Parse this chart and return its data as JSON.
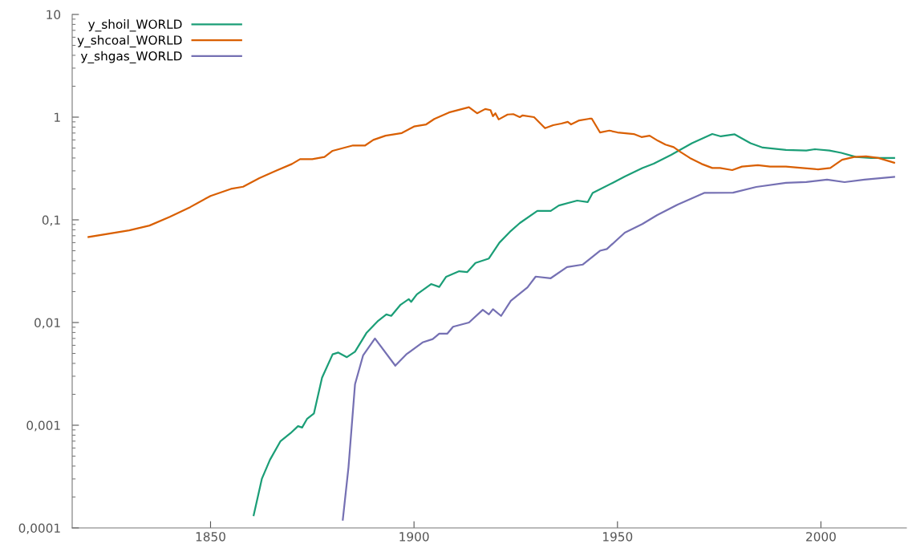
{
  "chart_data": {
    "type": "line",
    "log": "y",
    "grid": false,
    "legend": "top left",
    "marker": "none",
    "line_style": "solid",
    "xlim": [
      1816,
      2021
    ],
    "xticks": [
      1850,
      1900,
      1950,
      2000
    ],
    "ylim": [
      0.0001,
      10
    ],
    "yticks": [
      {
        "value": 0.0001,
        "label": "0,0001"
      },
      {
        "value": 0.001,
        "label": "0,001"
      },
      {
        "value": 0.01,
        "label": "0,01"
      },
      {
        "value": 0.1,
        "label": "0,1"
      },
      {
        "value": 1,
        "label": "1"
      },
      {
        "value": 10,
        "label": "10"
      }
    ],
    "series": [
      {
        "name": "y_shoil_WORLD",
        "color": "#1b9e77",
        "x": [
          1860.6,
          1862.6,
          1864.6,
          1867.2,
          1869.7,
          1871.5,
          1872.5,
          1873.7,
          1875.4,
          1877.4,
          1880,
          1881.4,
          1883.5,
          1885.5,
          1888.3,
          1891.2,
          1893.2,
          1894.4,
          1896.7,
          1898.7,
          1899.3,
          1900.7,
          1904.2,
          1906.2,
          1907.9,
          1911.1,
          1913.1,
          1915.1,
          1918.4,
          1921,
          1923.8,
          1926,
          1930.3,
          1933.6,
          1935.6,
          1940.1,
          1942.7,
          1943.9,
          1948.8,
          1951.8,
          1956.1,
          1958.9,
          1963.2,
          1968.3,
          1973.3,
          1975.4,
          1978.8,
          1982.7,
          1985.7,
          1991.4,
          1996.4,
          1998.5,
          2002.1,
          2005,
          2008.6,
          2012.3,
          2018
        ],
        "values": [
          0.000133,
          0.0003,
          0.00046,
          0.0007,
          0.00084,
          0.00098,
          0.00095,
          0.00115,
          0.0013,
          0.0029,
          0.0049,
          0.0051,
          0.0046,
          0.0052,
          0.0079,
          0.0104,
          0.012,
          0.0116,
          0.0149,
          0.0169,
          0.0159,
          0.0188,
          0.0237,
          0.0222,
          0.0279,
          0.0316,
          0.031,
          0.038,
          0.042,
          0.06,
          0.078,
          0.093,
          0.122,
          0.122,
          0.138,
          0.154,
          0.149,
          0.183,
          0.229,
          0.264,
          0.319,
          0.352,
          0.43,
          0.557,
          0.685,
          0.65,
          0.68,
          0.557,
          0.505,
          0.48,
          0.473,
          0.487,
          0.473,
          0.449,
          0.41,
          0.4,
          0.4
        ]
      },
      {
        "name": "y_shcoal_WORLD",
        "color": "#d95f02",
        "x": [
          1820,
          1830,
          1835,
          1840,
          1845,
          1850,
          1855,
          1858,
          1862,
          1866,
          1870,
          1872,
          1875,
          1878,
          1880,
          1885,
          1888,
          1890,
          1893,
          1897,
          1900,
          1903,
          1905,
          1908.6,
          1913.5,
          1915.5,
          1917.5,
          1918.8,
          1919.4,
          1920,
          1920.8,
          1923,
          1924.4,
          1926,
          1926.7,
          1929.5,
          1932.2,
          1934.2,
          1936.2,
          1937.8,
          1938.6,
          1940.6,
          1943.1,
          1943.7,
          1945.7,
          1948,
          1950,
          1954,
          1955.9,
          1957.9,
          1959.9,
          1961.8,
          1963.8,
          1965.4,
          1967.8,
          1970.7,
          1973.3,
          1975.2,
          1978.2,
          1980.6,
          1984.5,
          1987.5,
          1991.4,
          1995.4,
          1999.3,
          2002.3,
          2005.2,
          2008.2,
          2011.1,
          2014.1,
          2018
        ],
        "values": [
          0.068,
          0.079,
          0.088,
          0.107,
          0.133,
          0.171,
          0.2,
          0.21,
          0.255,
          0.3,
          0.35,
          0.39,
          0.39,
          0.41,
          0.47,
          0.53,
          0.53,
          0.6,
          0.66,
          0.7,
          0.81,
          0.85,
          0.96,
          1.11,
          1.25,
          1.09,
          1.2,
          1.17,
          1.02,
          1.09,
          0.95,
          1.06,
          1.07,
          1.0,
          1.04,
          1.0,
          0.78,
          0.835,
          0.866,
          0.9,
          0.85,
          0.93,
          0.965,
          0.965,
          0.71,
          0.74,
          0.71,
          0.685,
          0.64,
          0.66,
          0.59,
          0.54,
          0.51,
          0.46,
          0.4,
          0.35,
          0.32,
          0.32,
          0.305,
          0.33,
          0.34,
          0.33,
          0.33,
          0.32,
          0.31,
          0.32,
          0.385,
          0.41,
          0.415,
          0.4,
          0.36
        ]
      },
      {
        "name": "y_shgas_WORLD",
        "color": "#7570b3",
        "x": [
          1882.5,
          1883.9,
          1885.5,
          1887.5,
          1890.4,
          1895.4,
          1898.1,
          1902.1,
          1904.6,
          1906.2,
          1908.2,
          1909.6,
          1913.5,
          1916.9,
          1918.4,
          1919.4,
          1921.4,
          1923.8,
          1927.9,
          1929.9,
          1933.6,
          1937.6,
          1941.5,
          1945.7,
          1947.4,
          1951.8,
          1956.1,
          1959.7,
          1964.8,
          1971.3,
          1978.4,
          1984.1,
          1991.4,
          1996.4,
          2001.5,
          2005.8,
          2010.7,
          2018
        ],
        "values": [
          0.00012,
          0.00039,
          0.0025,
          0.0048,
          0.007,
          0.0038,
          0.0049,
          0.0064,
          0.0069,
          0.0078,
          0.0078,
          0.0091,
          0.01,
          0.0133,
          0.012,
          0.0135,
          0.0116,
          0.0163,
          0.022,
          0.028,
          0.027,
          0.0347,
          0.0367,
          0.05,
          0.052,
          0.075,
          0.091,
          0.111,
          0.141,
          0.183,
          0.184,
          0.209,
          0.229,
          0.233,
          0.246,
          0.233,
          0.246,
          0.262
        ]
      }
    ]
  }
}
